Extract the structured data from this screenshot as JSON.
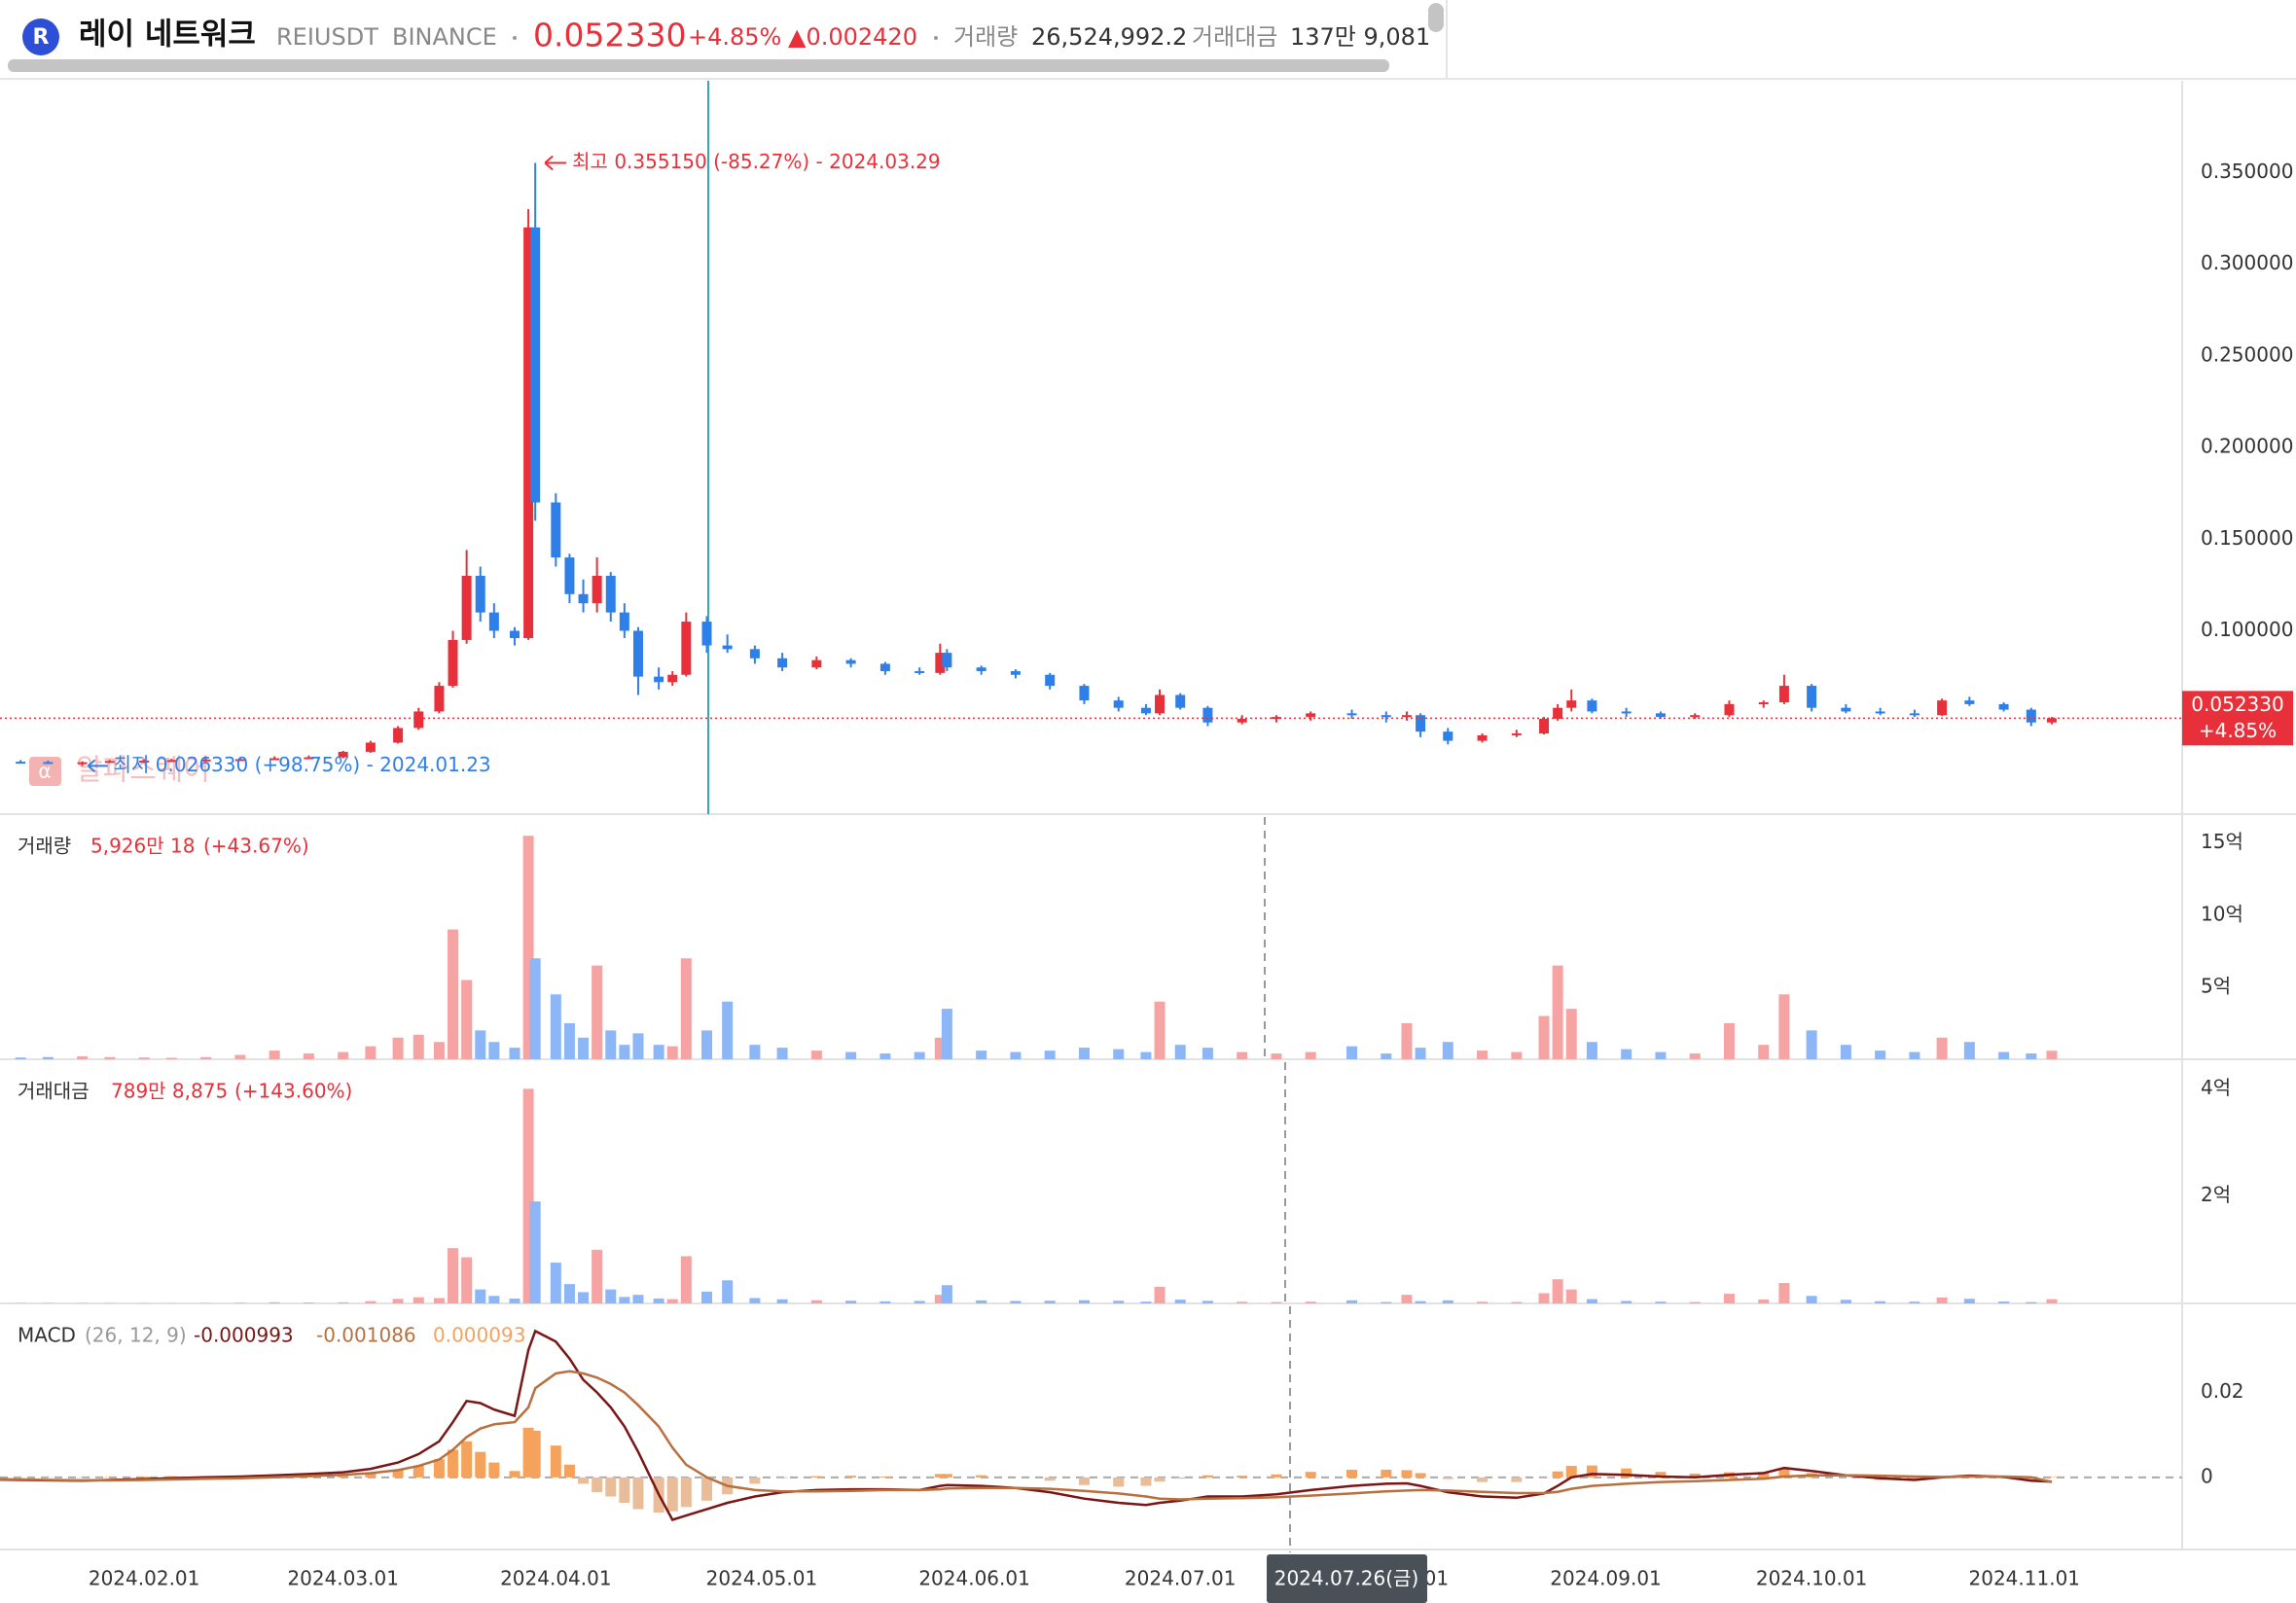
{
  "header": {
    "name": "레이 네트워크",
    "symbol": "REIUSDT",
    "exchange": "BINANCE",
    "price": "0.052330",
    "change_pct": "+4.85%",
    "change": "▲0.002420",
    "volume_label": "거래량",
    "volume": "26,524,992.2",
    "value_label": "거래대금",
    "value": "137만 9,081"
  },
  "watermark": "알파스퀘어",
  "crosshair": {
    "label": "2024.07.26(금)"
  },
  "chart_data": {
    "type": "candlestick",
    "up_color": "#e8303a",
    "down_color": "#2f7fe8",
    "x": [
      "2024.01.10",
      "2024.01.14",
      "2024.01.18",
      "2024.01.23",
      "2024.01.27",
      "2024.02.01",
      "2024.02.05",
      "2024.02.10",
      "2024.02.15",
      "2024.02.20",
      "2024.02.25",
      "2024.03.01",
      "2024.03.05",
      "2024.03.09",
      "2024.03.12",
      "2024.03.15",
      "2024.03.17",
      "2024.03.19",
      "2024.03.21",
      "2024.03.23",
      "2024.03.26",
      "2024.03.28",
      "2024.03.29",
      "2024.04.01",
      "2024.04.03",
      "2024.04.05",
      "2024.04.07",
      "2024.04.09",
      "2024.04.11",
      "2024.04.13",
      "2024.04.16",
      "2024.04.18",
      "2024.04.20",
      "2024.04.23",
      "2024.04.26",
      "2024.04.30",
      "2024.05.04",
      "2024.05.09",
      "2024.05.14",
      "2024.05.19",
      "2024.05.24",
      "2024.05.27",
      "2024.05.28",
      "2024.06.02",
      "2024.06.07",
      "2024.06.12",
      "2024.06.17",
      "2024.06.22",
      "2024.06.26",
      "2024.06.28",
      "2024.07.01",
      "2024.07.05",
      "2024.07.10",
      "2024.07.15",
      "2024.07.20",
      "2024.07.26",
      "2024.07.31",
      "2024.08.03",
      "2024.08.05",
      "2024.08.09",
      "2024.08.14",
      "2024.08.19",
      "2024.08.23",
      "2024.08.25",
      "2024.08.27",
      "2024.08.30",
      "2024.09.04",
      "2024.09.09",
      "2024.09.14",
      "2024.09.19",
      "2024.09.24",
      "2024.09.27",
      "2024.10.01",
      "2024.10.06",
      "2024.10.11",
      "2024.10.16",
      "2024.10.20",
      "2024.10.24",
      "2024.10.29",
      "2024.11.02",
      "2024.11.05"
    ],
    "open": [
      0.029,
      0.0286,
      0.0284,
      0.028,
      0.0283,
      0.029,
      0.0292,
      0.0295,
      0.0298,
      0.03,
      0.0305,
      0.031,
      0.034,
      0.039,
      0.047,
      0.056,
      0.07,
      0.095,
      0.13,
      0.11,
      0.1,
      0.096,
      0.32,
      0.17,
      0.14,
      0.12,
      0.115,
      0.13,
      0.11,
      0.1,
      0.075,
      0.072,
      0.076,
      0.105,
      0.092,
      0.09,
      0.085,
      0.08,
      0.084,
      0.082,
      0.078,
      0.077,
      0.088,
      0.08,
      0.078,
      0.076,
      0.07,
      0.062,
      0.058,
      0.055,
      0.065,
      0.058,
      0.05,
      0.052,
      0.053,
      0.055,
      0.054,
      0.053,
      0.054,
      0.045,
      0.04,
      0.043,
      0.044,
      0.052,
      0.058,
      0.062,
      0.056,
      0.055,
      0.053,
      0.054,
      0.06,
      0.061,
      0.07,
      0.058,
      0.056,
      0.055,
      0.054,
      0.062,
      0.06,
      0.057,
      0.05
    ],
    "high": [
      0.03,
      0.0295,
      0.0292,
      0.0288,
      0.0295,
      0.03,
      0.0302,
      0.0305,
      0.031,
      0.0315,
      0.032,
      0.0345,
      0.04,
      0.048,
      0.058,
      0.072,
      0.1,
      0.144,
      0.135,
      0.115,
      0.102,
      0.33,
      0.35515,
      0.175,
      0.142,
      0.128,
      0.14,
      0.132,
      0.115,
      0.102,
      0.08,
      0.078,
      0.11,
      0.108,
      0.098,
      0.092,
      0.088,
      0.086,
      0.085,
      0.083,
      0.08,
      0.093,
      0.09,
      0.081,
      0.079,
      0.077,
      0.071,
      0.064,
      0.06,
      0.068,
      0.066,
      0.059,
      0.054,
      0.054,
      0.056,
      0.057,
      0.056,
      0.056,
      0.055,
      0.047,
      0.044,
      0.046,
      0.053,
      0.06,
      0.068,
      0.063,
      0.058,
      0.056,
      0.055,
      0.062,
      0.062,
      0.076,
      0.071,
      0.06,
      0.058,
      0.057,
      0.063,
      0.064,
      0.061,
      0.058,
      0.053
    ],
    "low": [
      0.0283,
      0.028,
      0.0275,
      0.0263,
      0.028,
      0.0285,
      0.0287,
      0.029,
      0.0293,
      0.0295,
      0.03,
      0.0305,
      0.0335,
      0.0385,
      0.046,
      0.055,
      0.069,
      0.093,
      0.105,
      0.096,
      0.092,
      0.095,
      0.16,
      0.135,
      0.115,
      0.11,
      0.11,
      0.105,
      0.096,
      0.065,
      0.068,
      0.07,
      0.075,
      0.088,
      0.088,
      0.082,
      0.078,
      0.079,
      0.08,
      0.076,
      0.076,
      0.076,
      0.078,
      0.076,
      0.074,
      0.068,
      0.06,
      0.056,
      0.054,
      0.054,
      0.057,
      0.048,
      0.049,
      0.05,
      0.051,
      0.052,
      0.05,
      0.051,
      0.042,
      0.038,
      0.039,
      0.042,
      0.0435,
      0.051,
      0.056,
      0.055,
      0.053,
      0.052,
      0.052,
      0.053,
      0.058,
      0.06,
      0.056,
      0.055,
      0.054,
      0.053,
      0.0535,
      0.059,
      0.056,
      0.048,
      0.049
    ],
    "close": [
      0.0286,
      0.0284,
      0.028,
      0.0283,
      0.029,
      0.0292,
      0.0295,
      0.0298,
      0.03,
      0.0305,
      0.031,
      0.034,
      0.039,
      0.047,
      0.056,
      0.07,
      0.095,
      0.13,
      0.11,
      0.1,
      0.096,
      0.32,
      0.17,
      0.14,
      0.12,
      0.115,
      0.13,
      0.11,
      0.1,
      0.075,
      0.072,
      0.076,
      0.105,
      0.092,
      0.09,
      0.085,
      0.08,
      0.084,
      0.082,
      0.078,
      0.077,
      0.088,
      0.08,
      0.078,
      0.076,
      0.07,
      0.062,
      0.058,
      0.055,
      0.065,
      0.058,
      0.05,
      0.052,
      0.053,
      0.055,
      0.054,
      0.053,
      0.054,
      0.045,
      0.04,
      0.043,
      0.044,
      0.052,
      0.058,
      0.062,
      0.056,
      0.055,
      0.053,
      0.054,
      0.06,
      0.061,
      0.07,
      0.058,
      0.056,
      0.055,
      0.054,
      0.062,
      0.06,
      0.057,
      0.05,
      0.05233
    ],
    "xlim": [
      "2024.01.11",
      "2024.11.24"
    ],
    "xticks": [
      "2024.02.01",
      "2024.03.01",
      "2024.04.01",
      "2024.05.01",
      "2024.06.01",
      "2024.07.01",
      "2024.08.01",
      "2024.09.01",
      "2024.10.01",
      "2024.11.01"
    ],
    "ylim": [
      0,
      0.4
    ],
    "yticks": [
      {
        "value": 0.1,
        "label": "0.100000"
      },
      {
        "value": 0.15,
        "label": "0.150000"
      },
      {
        "value": 0.2,
        "label": "0.200000"
      },
      {
        "value": 0.25,
        "label": "0.250000"
      },
      {
        "value": 0.3,
        "label": "0.300000"
      },
      {
        "value": 0.35,
        "label": "0.350000"
      }
    ],
    "last": {
      "value": 0.05233,
      "label": "0.052330",
      "change": "+4.85%"
    },
    "high_note": {
      "value": 0.35515,
      "x": "2024.03.29",
      "label": "최고 0.355150 (-85.27%) - 2024.03.29"
    },
    "low_note": {
      "value": 0.02633,
      "x": "2024.01.23",
      "label": "최저 0.026330 (+98.75%) - 2024.01.23"
    },
    "panes": [
      {
        "type": "bar",
        "title": "거래량",
        "value_label": "5,926만 18",
        "change": "(+43.67%)",
        "up_color": "#f6a3a3",
        "down_color": "#8db6f7",
        "values": [
          0.1,
          0.12,
          0.15,
          0.2,
          0.15,
          0.12,
          0.1,
          0.15,
          0.3,
          0.6,
          0.4,
          0.5,
          0.9,
          1.5,
          1.7,
          1.2,
          9.0,
          5.5,
          2.0,
          1.2,
          0.8,
          15.5,
          7.0,
          4.5,
          2.5,
          1.5,
          6.5,
          2.0,
          1.0,
          1.8,
          1.0,
          0.9,
          7.0,
          2.0,
          4.0,
          1.0,
          0.8,
          0.6,
          0.5,
          0.4,
          0.5,
          1.5,
          3.5,
          0.6,
          0.5,
          0.6,
          0.8,
          0.7,
          0.5,
          4.0,
          1.0,
          0.8,
          0.5,
          0.4,
          0.5,
          0.9,
          0.4,
          2.5,
          0.8,
          1.2,
          0.6,
          0.5,
          3.0,
          6.5,
          3.5,
          1.2,
          0.7,
          0.5,
          0.4,
          2.5,
          1.0,
          4.5,
          2.0,
          1.0,
          0.6,
          0.5,
          1.5,
          1.2,
          0.5,
          0.4,
          0.5926
        ],
        "ylim": [
          0,
          17
        ],
        "yticks": [
          {
            "value": 5,
            "label": "5억"
          },
          {
            "value": 10,
            "label": "10억"
          },
          {
            "value": 15,
            "label": "15억"
          }
        ]
      },
      {
        "type": "bar",
        "title": "거래대금",
        "value_label": "789만 8,875",
        "change": "(+143.60%)",
        "up_color": "#f6a3a3",
        "down_color": "#8db6f7",
        "values": [
          0.0035,
          0.004,
          0.005,
          0.007,
          0.005,
          0.004,
          0.0035,
          0.005,
          0.011,
          0.022,
          0.015,
          0.02,
          0.042,
          0.085,
          0.114,
          0.1,
          1.03,
          0.86,
          0.26,
          0.14,
          0.09,
          4.0,
          1.9,
          0.76,
          0.36,
          0.21,
          1.0,
          0.26,
          0.12,
          0.16,
          0.09,
          0.08,
          0.88,
          0.22,
          0.43,
          0.1,
          0.077,
          0.06,
          0.05,
          0.037,
          0.046,
          0.16,
          0.34,
          0.056,
          0.046,
          0.05,
          0.06,
          0.049,
          0.033,
          0.31,
          0.07,
          0.048,
          0.031,
          0.025,
          0.033,
          0.058,
          0.025,
          0.16,
          0.043,
          0.058,
          0.031,
          0.026,
          0.19,
          0.45,
          0.26,
          0.08,
          0.046,
          0.032,
          0.026,
          0.18,
          0.073,
          0.38,
          0.14,
          0.067,
          0.04,
          0.032,
          0.11,
          0.086,
          0.034,
          0.024,
          0.079
        ],
        "ylim": [
          0,
          4.55
        ],
        "yticks": [
          {
            "value": 2,
            "label": "2억"
          },
          {
            "value": 4,
            "label": "4억"
          }
        ]
      },
      {
        "type": "macd",
        "title": "MACD",
        "params": "(26, 12, 9)",
        "zero_line": true,
        "series": [
          {
            "kind": "line",
            "color": "#7a1616",
            "values": [
              -0.0005,
              -0.0006,
              -0.0007,
              -0.0008,
              -0.0006,
              -0.0004,
              -0.0002,
              0,
              0.0002,
              0.0005,
              0.0008,
              0.0012,
              0.002,
              0.0035,
              0.0055,
              0.0085,
              0.013,
              0.018,
              0.0175,
              0.016,
              0.0145,
              0.03,
              0.0345,
              0.032,
              0.028,
              0.023,
              0.02,
              0.0165,
              0.012,
              0.006,
              -0.004,
              -0.01,
              -0.009,
              -0.0075,
              -0.006,
              -0.0045,
              -0.0035,
              -0.003,
              -0.0028,
              -0.0028,
              -0.003,
              -0.002,
              -0.0018,
              -0.002,
              -0.0025,
              -0.0035,
              -0.005,
              -0.006,
              -0.0065,
              -0.006,
              -0.0055,
              -0.0045,
              -0.0045,
              -0.004,
              -0.003,
              -0.002,
              -0.0015,
              -0.0014,
              -0.002,
              -0.0035,
              -0.0045,
              -0.0048,
              -0.0038,
              -0.002,
              0,
              0.0008,
              0.0006,
              0.0002,
              0,
              0.0006,
              0.001,
              0.0022,
              0.0015,
              0.0005,
              -0.0002,
              -0.0006,
              0,
              0.0004,
              0.0001,
              -0.0008,
              -0.000993
            ]
          },
          {
            "kind": "line",
            "color": "#b8703f",
            "values": [
              -0.0004,
              -0.0005,
              -0.0006,
              -0.0007,
              -0.0007,
              -0.0006,
              -0.0005,
              -0.0003,
              -0.0002,
              0,
              0.0003,
              0.0006,
              0.001,
              0.0017,
              0.0027,
              0.0042,
              0.0065,
              0.0095,
              0.0115,
              0.0125,
              0.013,
              0.0165,
              0.021,
              0.0245,
              0.025,
              0.0245,
              0.0235,
              0.022,
              0.02,
              0.017,
              0.012,
              0.007,
              0.003,
              0,
              -0.002,
              -0.003,
              -0.0033,
              -0.0033,
              -0.0032,
              -0.003,
              -0.003,
              -0.0028,
              -0.0026,
              -0.0025,
              -0.0025,
              -0.0027,
              -0.0032,
              -0.0038,
              -0.0045,
              -0.005,
              -0.0052,
              -0.005,
              -0.0049,
              -0.0047,
              -0.0043,
              -0.0038,
              -0.0033,
              -0.0031,
              -0.003,
              -0.0031,
              -0.0034,
              -0.0037,
              -0.0037,
              -0.0034,
              -0.0027,
              -0.002,
              -0.0015,
              -0.0011,
              -0.0009,
              -0.0006,
              -0.0003,
              0.0002,
              0.0005,
              0.0005,
              0.0004,
              0.0002,
              0.0001,
              0.0002,
              0.0002,
              0,
              -0.001086
            ]
          },
          {
            "kind": "histogram",
            "color": "#f5a25d",
            "negative_color": "#e9bc9a",
            "values": [
              -0.0001,
              -0.0001,
              -0.0001,
              -0.0001,
              0.0001,
              0.0002,
              0.0003,
              0.0003,
              0.0004,
              0.0005,
              0.0005,
              0.0006,
              0.001,
              0.0018,
              0.0028,
              0.0043,
              0.0065,
              0.0085,
              0.006,
              0.0035,
              0.0015,
              0.0117,
              0.011,
              0.0075,
              0.003,
              -0.0015,
              -0.0035,
              -0.0045,
              -0.006,
              -0.0075,
              -0.0083,
              -0.008,
              -0.007,
              -0.0055,
              -0.004,
              -0.0015,
              -0.0002,
              0.0003,
              0.0004,
              0.0002,
              0,
              0.0008,
              0.0008,
              0.0005,
              0,
              -0.0008,
              -0.0018,
              -0.0022,
              -0.002,
              -0.001,
              -0.0003,
              0.0005,
              0.0004,
              0.0007,
              0.0013,
              0.0018,
              0.0018,
              0.0017,
              0.001,
              -0.0004,
              -0.0011,
              -0.0011,
              -0.0001,
              0.0014,
              0.0027,
              0.0028,
              0.0021,
              0.0013,
              0.0009,
              0.0012,
              0.0013,
              0.002,
              0.001,
              0,
              -0.0006,
              -0.0008,
              -0.0001,
              0.0002,
              -0.0001,
              -0.0008,
              9.3e-05
            ]
          }
        ],
        "ylim": [
          -0.017,
          0.041
        ],
        "yticks": [
          0,
          0.02
        ]
      }
    ]
  }
}
